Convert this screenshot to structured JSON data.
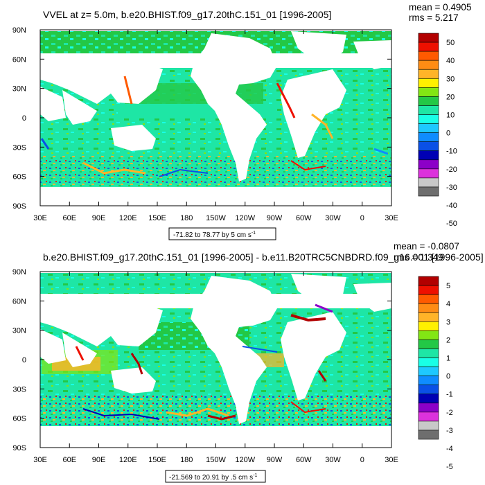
{
  "panels": [
    {
      "title": "VVEL at z=   5.0m, b.e20.BHIST.f09_g17.20thC.151_01 [1996-2005]",
      "mean_label": "mean = 0.4905",
      "rms_label": "rms = 5.217",
      "range_text": "-71.82 to 78.77 by 5 cm s",
      "range_unit_sup": "-1",
      "colorbar_labels": [
        "50",
        "40",
        "30",
        "20",
        "10",
        "0",
        "-10",
        "-20",
        "-30",
        "-40",
        "-50"
      ]
    },
    {
      "title": "b.e20.BHIST.f09_g17.20thC.151_01 [1996-2005] - b.e11.B20TRC5CNBDRD.f09_g16.001 [1996-2005]",
      "mean_label": "mean = -0.0807",
      "rms_label": "rms = 1.349",
      "range_text": "-21.569 to 20.91 by .5 cm s",
      "range_unit_sup": "-1",
      "colorbar_labels": [
        "5",
        "4",
        "3",
        "2",
        "1",
        "0",
        "-1",
        "-2",
        "-3",
        "-4",
        "-5"
      ]
    }
  ],
  "lat_labels": [
    "90N",
    "60N",
    "30N",
    "0",
    "30S",
    "60S",
    "90S"
  ],
  "lon_labels": [
    "30E",
    "60E",
    "90E",
    "120E",
    "150E",
    "180",
    "150W",
    "120W",
    "90W",
    "60W",
    "30W",
    "0",
    "30E"
  ],
  "colorbar_colors": [
    "#b20000",
    "#ee1000",
    "#ff5a00",
    "#ff8c14",
    "#ffb428",
    "#fff000",
    "#82e614",
    "#23c846",
    "#1ee6a5",
    "#19ffe6",
    "#1ec8ff",
    "#0f8cff",
    "#0a50e6",
    "#0000b4",
    "#8c00c8",
    "#dc32dc",
    "#c8c8c8",
    "#6e6e6e"
  ]
}
